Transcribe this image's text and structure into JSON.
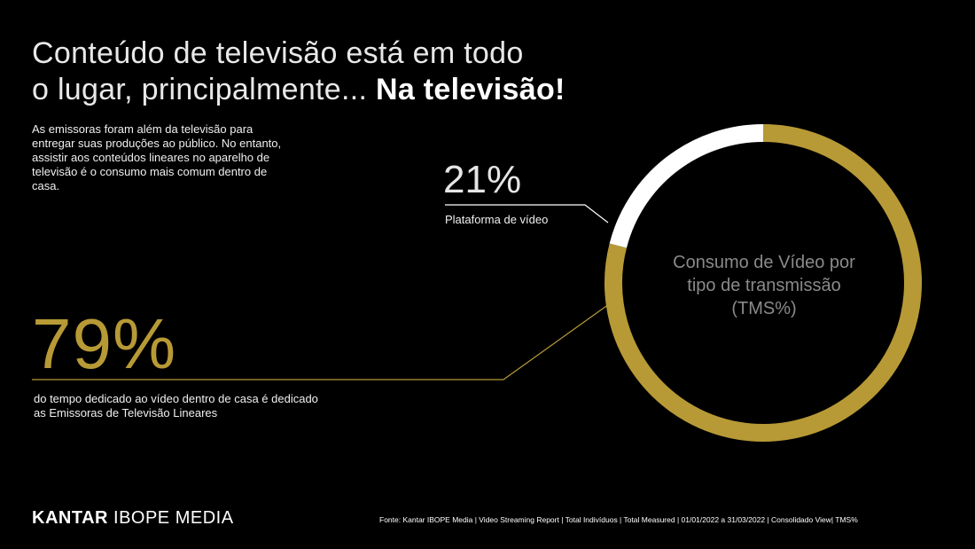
{
  "title": {
    "line1": "Conteúdo de televisão está em todo",
    "line2_light": "o lugar, principalmente... ",
    "line2_bold": "Na televisão!"
  },
  "intro": "As emissoras foram além da televisão para entregar suas produções ao público. No entanto, assistir aos conteúdos lineares no aparelho de televisão é o consumo mais comum dentro de casa.",
  "chart_data": {
    "type": "pie",
    "variant": "donut",
    "title": "Consumo de Vídeo por tipo de transmissão (TMS%)",
    "title_lines": [
      "Consumo de Vídeo por",
      "tipo de transmissão",
      "(TMS%)"
    ],
    "slices": [
      {
        "label": "do tempo dedicado ao vídeo dentro de casa é dedicado as Emissoras de Televisão Lineares",
        "value": 79,
        "display": "79%",
        "color": "#b79a36"
      },
      {
        "label": "Plataforma de vídeo",
        "value": 21,
        "display": "21%",
        "color": "#ffffff"
      }
    ]
  },
  "footer": {
    "logo_bold": "KANTAR",
    "logo_light": "IBOPE MEDIA",
    "source": "Fonte: Kantar IBOPE Media | Video Streaming Report | Total Indivíduos | Total Measured | 01/01/2022 a 31/03/2022 | Consolidado View| TMS%"
  }
}
